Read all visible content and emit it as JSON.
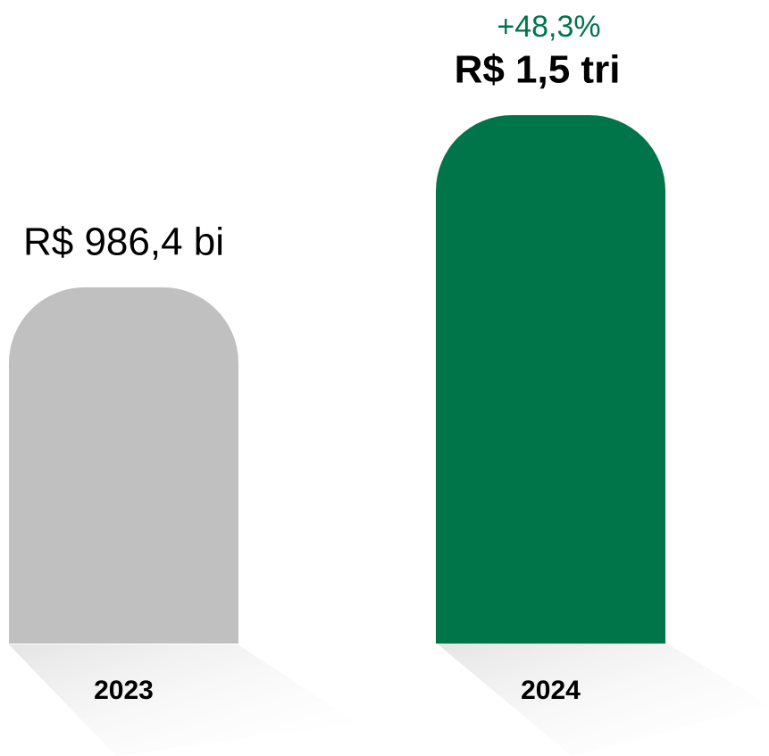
{
  "chart_data": {
    "type": "bar",
    "categories": [
      "2023",
      "2024"
    ],
    "values": [
      986.4,
      1463
    ],
    "value_labels": [
      "R$ 986,4 bi",
      "R$ 1,5 tri"
    ],
    "colors": [
      "#c0c0c0",
      "#00754a"
    ],
    "annotation": "+48,3%",
    "annotation_color": "#00754a"
  }
}
